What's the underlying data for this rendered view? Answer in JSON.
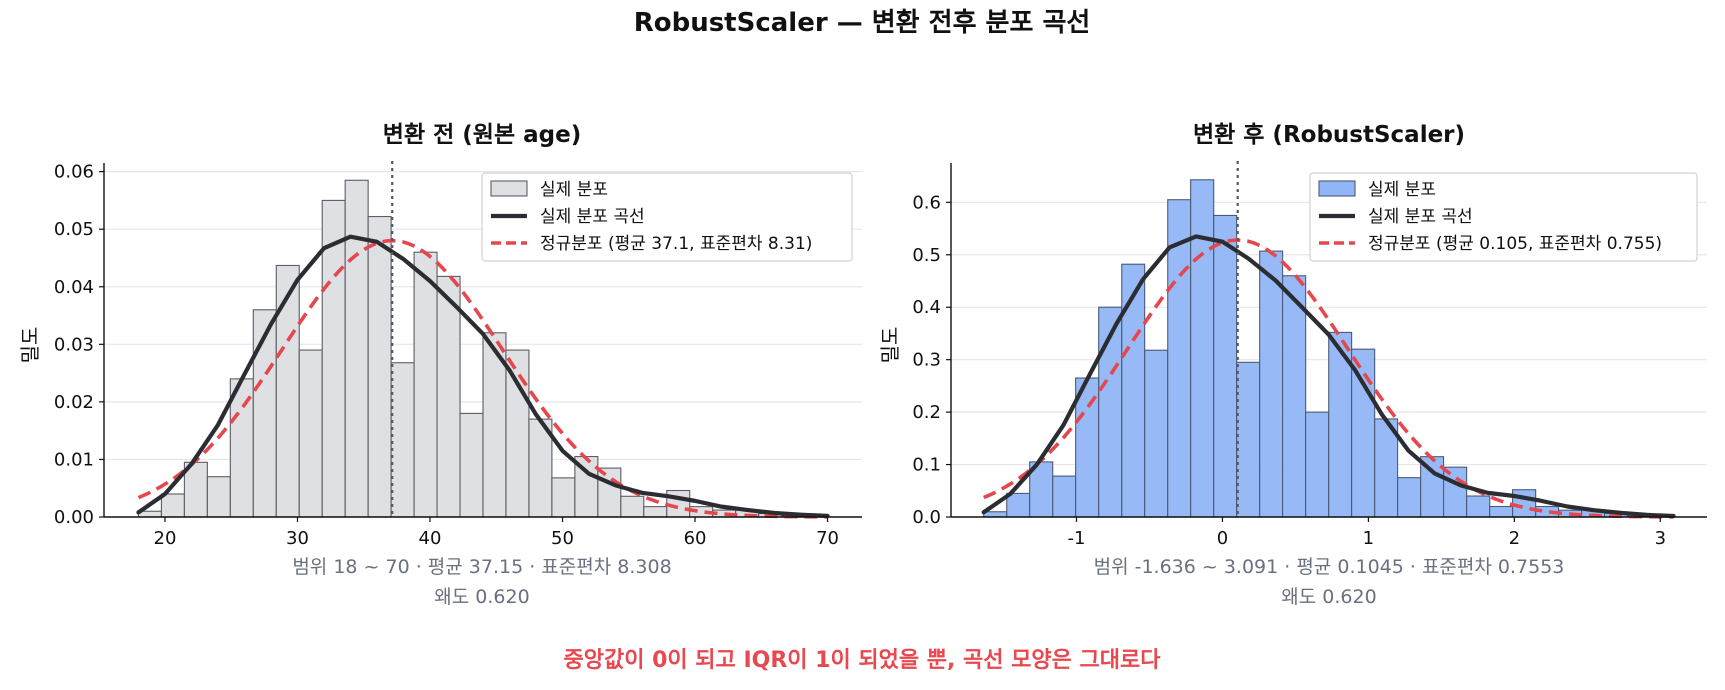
{
  "figure": {
    "title": "RobustScaler — 변환 전후 분포 곡선",
    "footnote": "중앙값이 0이 되고 IQR이 1이 되었을 뿐, 곡선 모양은 그대로다",
    "footnote_color": "#e8484f"
  },
  "chart_data": [
    {
      "type": "bar",
      "title": "변환 전 (원본 age)",
      "ylabel": "밀도",
      "xlim": [
        15.4,
        72.6
      ],
      "ylim": [
        0,
        0.0615
      ],
      "xticks": [
        20,
        30,
        40,
        50,
        60,
        70
      ],
      "xtick_labels": [
        "20",
        "30",
        "40",
        "50",
        "60",
        "70"
      ],
      "yticks": [
        0,
        0.01,
        0.02,
        0.03,
        0.04,
        0.05,
        0.06
      ],
      "ytick_labels": [
        "0.00",
        "0.01",
        "0.02",
        "0.03",
        "0.04",
        "0.05",
        "0.06"
      ],
      "grid": "horizontal",
      "legend_position": "top-right",
      "legend": [
        "실제 분포",
        "실제 분포 곡선",
        "정규분포 (평균 37.1, 표준편차 8.31)"
      ],
      "histogram": {
        "name": "실제 분포",
        "color": "#dfe0e3",
        "edge_color": "#5a5d66",
        "bin_edges": [
          18,
          19.733,
          21.467,
          23.2,
          24.933,
          26.667,
          28.4,
          30.133,
          31.867,
          33.6,
          35.333,
          37.067,
          38.8,
          40.533,
          42.267,
          44,
          45.733,
          47.467,
          49.2,
          50.933,
          52.667,
          54.4,
          56.133,
          57.867,
          59.6,
          61.333,
          63.067,
          64.8,
          66.533,
          68.267,
          70
        ],
        "densities": [
          0.001,
          0.004,
          0.0095,
          0.007,
          0.024,
          0.036,
          0.0437,
          0.029,
          0.055,
          0.0585,
          0.0522,
          0.0268,
          0.046,
          0.0418,
          0.018,
          0.032,
          0.029,
          0.017,
          0.0068,
          0.0105,
          0.0085,
          0.0036,
          0.0018,
          0.0046,
          0.0018,
          0.0012,
          0.0012,
          0.0006,
          0.0002,
          0.0001
        ]
      },
      "kde": {
        "name": "실제 분포 곡선",
        "color": "#2b2d33",
        "x": [
          18,
          20,
          22,
          24,
          26,
          28,
          30,
          32,
          34,
          36,
          38,
          40,
          42,
          44,
          46,
          48,
          50,
          52,
          54,
          56,
          58,
          60,
          62,
          64,
          66,
          68,
          70
        ],
        "y": [
          0.0008,
          0.004,
          0.0092,
          0.016,
          0.0248,
          0.0335,
          0.0412,
          0.0467,
          0.0487,
          0.0478,
          0.0448,
          0.041,
          0.0365,
          0.0318,
          0.0255,
          0.0178,
          0.0115,
          0.0075,
          0.0055,
          0.0042,
          0.0036,
          0.0028,
          0.0018,
          0.0012,
          0.0007,
          0.0004,
          0.0002
        ]
      },
      "normal": {
        "name": "정규분포 (평균 37.1, 표준편차 8.31)",
        "color": "#e5474e",
        "mean": 37.15,
        "std": 8.308,
        "x_range": [
          18,
          70
        ]
      },
      "mean_line": 37.15,
      "stats_line1": "범위 18 ~ 70 · 평균 37.15 · 표준편차 8.308",
      "stats_line2": "왜도 0.620"
    },
    {
      "type": "bar",
      "title": "변환 후 (RobustScaler)",
      "ylabel": "밀도",
      "xlim": [
        -1.86,
        3.32
      ],
      "ylim": [
        0,
        0.675
      ],
      "xticks": [
        -1,
        0,
        1,
        2,
        3
      ],
      "xtick_labels": [
        "-1",
        "0",
        "1",
        "2",
        "3"
      ],
      "yticks": [
        0,
        0.1,
        0.2,
        0.3,
        0.4,
        0.5,
        0.6
      ],
      "ytick_labels": [
        "0.0",
        "0.1",
        "0.2",
        "0.3",
        "0.4",
        "0.5",
        "0.6"
      ],
      "grid": "horizontal",
      "legend_position": "top-right",
      "legend": [
        "실제 분포",
        "실제 분포 곡선",
        "정규분포 (평균 0.105, 표준편차 0.755)"
      ],
      "histogram": {
        "name": "실제 분포",
        "color": "#91b6f7",
        "edge_color": "#4a5a78",
        "bin_edges": [
          -1.636,
          -1.478,
          -1.321,
          -1.163,
          -1.006,
          -0.848,
          -0.69,
          -0.533,
          -0.375,
          -0.218,
          -0.06,
          0.097,
          0.255,
          0.412,
          0.57,
          0.728,
          0.885,
          1.043,
          1.2,
          1.358,
          1.515,
          1.673,
          1.831,
          1.988,
          2.146,
          2.303,
          2.461,
          2.618,
          2.776,
          2.933,
          3.091
        ],
        "densities": [
          0.01,
          0.045,
          0.105,
          0.078,
          0.265,
          0.4,
          0.482,
          0.318,
          0.605,
          0.643,
          0.575,
          0.295,
          0.507,
          0.46,
          0.2,
          0.352,
          0.32,
          0.187,
          0.075,
          0.115,
          0.095,
          0.04,
          0.02,
          0.052,
          0.02,
          0.013,
          0.013,
          0.007,
          0.002,
          0.001
        ]
      },
      "kde": {
        "name": "실제 분포 곡선",
        "color": "#2b2d33",
        "x": [
          -1.636,
          -1.454,
          -1.272,
          -1.09,
          -0.909,
          -0.727,
          -0.545,
          -0.363,
          -0.181,
          0,
          0.182,
          0.364,
          0.545,
          0.727,
          0.909,
          1.091,
          1.273,
          1.454,
          1.636,
          1.818,
          2,
          2.181,
          2.363,
          2.545,
          2.727,
          2.909,
          3.091
        ],
        "y": [
          0.009,
          0.044,
          0.1,
          0.175,
          0.272,
          0.368,
          0.453,
          0.514,
          0.535,
          0.525,
          0.492,
          0.451,
          0.4,
          0.348,
          0.28,
          0.196,
          0.127,
          0.083,
          0.06,
          0.046,
          0.04,
          0.031,
          0.02,
          0.013,
          0.008,
          0.004,
          0.002
        ]
      },
      "normal": {
        "name": "정규분포 (평균 0.105, 표준편차 0.755)",
        "color": "#e5474e",
        "mean": 0.1045,
        "std": 0.7553,
        "x_range": [
          -1.636,
          3.091
        ]
      },
      "mean_line": 0.1045,
      "stats_line1": "범위 -1.636 ~ 3.091 · 평균 0.1045 · 표준편차 0.7553",
      "stats_line2": "왜도 0.620"
    }
  ]
}
